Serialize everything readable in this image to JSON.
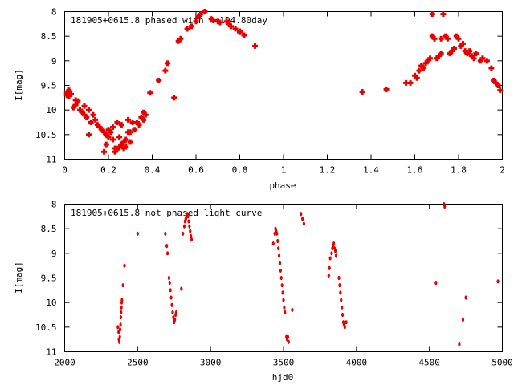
{
  "chart_data": [
    {
      "type": "scatter",
      "title": "181905+0615.8 phased with P=194.80day",
      "xlabel": "phase",
      "ylabel": "I[mag]",
      "xlim": [
        0,
        2
      ],
      "ylim": [
        11,
        8
      ],
      "y_inverted": true,
      "grid": false,
      "x_ticks": [
        "0",
        "0.2",
        "0.4",
        "0.6",
        "0.8",
        "1",
        "1.2",
        "1.4",
        "1.6",
        "1.8",
        "2"
      ],
      "y_ticks": [
        "8",
        "8.5",
        "9",
        "9.5",
        "10",
        "10.5",
        "11"
      ],
      "marker_color": "#e60000",
      "points": [
        [
          0.01,
          9.65
        ],
        [
          0.01,
          9.7
        ],
        [
          0.02,
          9.6
        ],
        [
          0.02,
          9.72
        ],
        [
          0.03,
          9.68
        ],
        [
          0.04,
          9.95
        ],
        [
          0.05,
          9.8
        ],
        [
          0.05,
          9.9
        ],
        [
          0.06,
          9.82
        ],
        [
          0.07,
          10.0
        ],
        [
          0.08,
          10.05
        ],
        [
          0.09,
          9.92
        ],
        [
          0.09,
          10.1
        ],
        [
          0.1,
          10.15
        ],
        [
          0.11,
          10.0
        ],
        [
          0.11,
          10.5
        ],
        [
          0.12,
          10.25
        ],
        [
          0.13,
          10.1
        ],
        [
          0.14,
          10.2
        ],
        [
          0.15,
          10.3
        ],
        [
          0.16,
          10.35
        ],
        [
          0.17,
          10.4
        ],
        [
          0.18,
          10.45
        ],
        [
          0.18,
          10.85
        ],
        [
          0.19,
          10.5
        ],
        [
          0.19,
          10.7
        ],
        [
          0.2,
          10.4
        ],
        [
          0.2,
          10.55
        ],
        [
          0.21,
          10.45
        ],
        [
          0.22,
          10.35
        ],
        [
          0.22,
          10.6
        ],
        [
          0.23,
          10.78
        ],
        [
          0.23,
          10.85
        ],
        [
          0.24,
          10.8
        ],
        [
          0.24,
          10.25
        ],
        [
          0.25,
          10.75
        ],
        [
          0.25,
          10.55
        ],
        [
          0.26,
          10.7
        ],
        [
          0.26,
          10.3
        ],
        [
          0.27,
          10.78
        ],
        [
          0.27,
          10.65
        ],
        [
          0.28,
          10.6
        ],
        [
          0.28,
          10.75
        ],
        [
          0.29,
          10.45
        ],
        [
          0.29,
          10.2
        ],
        [
          0.3,
          10.45
        ],
        [
          0.3,
          10.65
        ],
        [
          0.31,
          10.25
        ],
        [
          0.32,
          10.4
        ],
        [
          0.33,
          10.25
        ],
        [
          0.34,
          10.3
        ],
        [
          0.35,
          10.15
        ],
        [
          0.36,
          10.05
        ],
        [
          0.36,
          10.2
        ],
        [
          0.37,
          10.1
        ],
        [
          0.39,
          9.65
        ],
        [
          0.43,
          9.4
        ],
        [
          0.46,
          9.2
        ],
        [
          0.47,
          9.05
        ],
        [
          0.5,
          9.75
        ],
        [
          0.52,
          8.6
        ],
        [
          0.53,
          8.55
        ],
        [
          0.56,
          8.35
        ],
        [
          0.58,
          8.3
        ],
        [
          0.6,
          8.2
        ],
        [
          0.61,
          8.1
        ],
        [
          0.62,
          8.05
        ],
        [
          0.64,
          8.0
        ],
        [
          0.67,
          8.15
        ],
        [
          0.68,
          8.18
        ],
        [
          0.7,
          8.2
        ],
        [
          0.71,
          8.22
        ],
        [
          0.74,
          8.2
        ],
        [
          0.75,
          8.25
        ],
        [
          0.76,
          8.3
        ],
        [
          0.78,
          8.35
        ],
        [
          0.8,
          8.4
        ],
        [
          0.8,
          8.42
        ],
        [
          0.82,
          8.48
        ],
        [
          0.87,
          8.7
        ],
        [
          1.36,
          9.63
        ],
        [
          1.47,
          9.58
        ],
        [
          1.56,
          9.45
        ],
        [
          1.58,
          9.45
        ],
        [
          1.6,
          9.3
        ],
        [
          1.61,
          9.35
        ],
        [
          1.62,
          9.2
        ],
        [
          1.63,
          9.1
        ],
        [
          1.64,
          9.15
        ],
        [
          1.65,
          9.05
        ],
        [
          1.66,
          9.0
        ],
        [
          1.67,
          8.95
        ],
        [
          1.68,
          8.05
        ],
        [
          1.68,
          8.5
        ],
        [
          1.69,
          8.55
        ],
        [
          1.7,
          8.95
        ],
        [
          1.71,
          8.9
        ],
        [
          1.72,
          8.85
        ],
        [
          1.72,
          8.55
        ],
        [
          1.73,
          8.05
        ],
        [
          1.74,
          8.5
        ],
        [
          1.75,
          8.55
        ],
        [
          1.76,
          8.85
        ],
        [
          1.77,
          8.8
        ],
        [
          1.78,
          8.75
        ],
        [
          1.79,
          8.5
        ],
        [
          1.8,
          8.55
        ],
        [
          1.81,
          8.7
        ],
        [
          1.82,
          8.65
        ],
        [
          1.83,
          8.8
        ],
        [
          1.84,
          8.85
        ],
        [
          1.85,
          8.8
        ],
        [
          1.86,
          8.9
        ],
        [
          1.87,
          8.95
        ],
        [
          1.88,
          8.85
        ],
        [
          1.9,
          9.0
        ],
        [
          1.91,
          8.95
        ],
        [
          1.93,
          9.0
        ],
        [
          1.95,
          9.15
        ],
        [
          1.96,
          9.4
        ],
        [
          1.97,
          9.45
        ],
        [
          1.98,
          9.5
        ],
        [
          1.99,
          9.6
        ]
      ]
    },
    {
      "type": "scatter",
      "title": "181905+0615.8 not phased light curve",
      "xlabel": "hjd0",
      "ylabel": "I[mag]",
      "xlim": [
        2000,
        5000
      ],
      "ylim": [
        11,
        8
      ],
      "y_inverted": true,
      "grid": false,
      "x_ticks": [
        "2000",
        "2500",
        "3000",
        "3500",
        "4000",
        "4500",
        "5000"
      ],
      "y_ticks": [
        "8",
        "8.5",
        "9",
        "9.5",
        "10",
        "10.5",
        "11"
      ],
      "marker_color": "#e60000",
      "points": [
        [
          2365,
          10.5
        ],
        [
          2370,
          10.6
        ],
        [
          2372,
          10.75
        ],
        [
          2375,
          10.8
        ],
        [
          2378,
          10.7
        ],
        [
          2380,
          10.55
        ],
        [
          2383,
          10.45
        ],
        [
          2385,
          10.3
        ],
        [
          2387,
          10.2
        ],
        [
          2389,
          10.1
        ],
        [
          2391,
          10.0
        ],
        [
          2393,
          9.95
        ],
        [
          2400,
          9.65
        ],
        [
          2410,
          9.25
        ],
        [
          2500,
          8.6
        ],
        [
          2690,
          8.6
        ],
        [
          2700,
          8.85
        ],
        [
          2705,
          9.0
        ],
        [
          2715,
          9.5
        ],
        [
          2720,
          9.6
        ],
        [
          2725,
          9.75
        ],
        [
          2730,
          9.9
        ],
        [
          2735,
          10.05
        ],
        [
          2740,
          10.2
        ],
        [
          2745,
          10.3
        ],
        [
          2750,
          10.4
        ],
        [
          2755,
          10.35
        ],
        [
          2760,
          10.25
        ],
        [
          2765,
          10.2
        ],
        [
          2800,
          9.72
        ],
        [
          2820,
          8.45
        ],
        [
          2825,
          8.35
        ],
        [
          2830,
          8.3
        ],
        [
          2835,
          8.25
        ],
        [
          2840,
          8.2
        ],
        [
          2845,
          8.25
        ],
        [
          2850,
          8.35
        ],
        [
          2855,
          8.45
        ],
        [
          2860,
          8.55
        ],
        [
          2865,
          8.65
        ],
        [
          2870,
          8.72
        ],
        [
          2810,
          8.6
        ],
        [
          3430,
          8.8
        ],
        [
          3440,
          8.6
        ],
        [
          3445,
          8.5
        ],
        [
          3450,
          8.55
        ],
        [
          3455,
          8.6
        ],
        [
          3460,
          8.75
        ],
        [
          3465,
          8.9
        ],
        [
          3470,
          9.05
        ],
        [
          3475,
          9.2
        ],
        [
          3480,
          9.35
        ],
        [
          3485,
          9.5
        ],
        [
          3490,
          9.65
        ],
        [
          3495,
          9.8
        ],
        [
          3500,
          9.95
        ],
        [
          3505,
          10.1
        ],
        [
          3510,
          10.2
        ],
        [
          3520,
          10.7
        ],
        [
          3525,
          10.75
        ],
        [
          3530,
          10.7
        ],
        [
          3535,
          10.8
        ],
        [
          3560,
          10.15
        ],
        [
          3620,
          8.2
        ],
        [
          3630,
          8.3
        ],
        [
          3640,
          8.4
        ],
        [
          3810,
          9.45
        ],
        [
          3815,
          9.3
        ],
        [
          3820,
          9.1
        ],
        [
          3830,
          9.0
        ],
        [
          3835,
          8.9
        ],
        [
          3840,
          8.85
        ],
        [
          3845,
          8.8
        ],
        [
          3850,
          8.9
        ],
        [
          3855,
          8.95
        ],
        [
          3860,
          9.05
        ],
        [
          3880,
          9.5
        ],
        [
          3885,
          9.65
        ],
        [
          3890,
          9.8
        ],
        [
          3895,
          9.95
        ],
        [
          3900,
          10.1
        ],
        [
          3905,
          10.25
        ],
        [
          3910,
          10.4
        ],
        [
          3915,
          10.45
        ],
        [
          3920,
          10.5
        ],
        [
          3930,
          10.4
        ],
        [
          4545,
          9.6
        ],
        [
          4600,
          8.0
        ],
        [
          4605,
          8.05
        ],
        [
          4705,
          10.85
        ],
        [
          4730,
          10.35
        ],
        [
          4750,
          9.9
        ],
        [
          4970,
          9.57
        ]
      ]
    }
  ]
}
